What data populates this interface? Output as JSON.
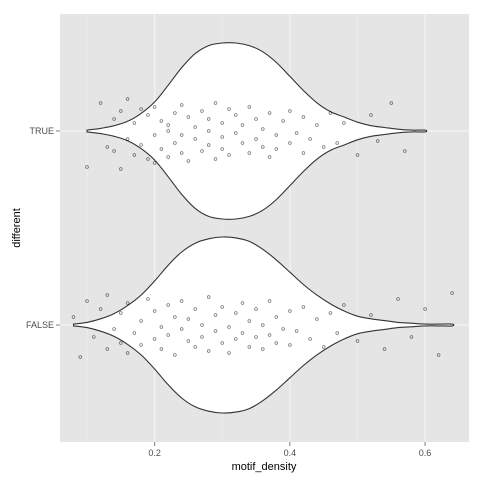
{
  "chart_data": {
    "type": "violin",
    "title": "",
    "xlabel": "motif_density",
    "ylabel": "different",
    "xlim": [
      0.06,
      0.665
    ],
    "x_ticks": [
      0.2,
      0.4,
      0.6
    ],
    "x_tick_labels": [
      "0.2",
      "0.4",
      "0.6"
    ],
    "categories": [
      "TRUE",
      "FALSE"
    ],
    "grid": true,
    "series": [
      {
        "category": "TRUE",
        "range": [
          0.1,
          0.6
        ],
        "density": [
          [
            0.1,
            0.01
          ],
          [
            0.12,
            0.03
          ],
          [
            0.14,
            0.06
          ],
          [
            0.16,
            0.11
          ],
          [
            0.18,
            0.2
          ],
          [
            0.2,
            0.33
          ],
          [
            0.22,
            0.52
          ],
          [
            0.24,
            0.72
          ],
          [
            0.26,
            0.88
          ],
          [
            0.28,
            0.97
          ],
          [
            0.3,
            1.0
          ],
          [
            0.32,
            1.0
          ],
          [
            0.34,
            0.97
          ],
          [
            0.36,
            0.9
          ],
          [
            0.38,
            0.78
          ],
          [
            0.4,
            0.62
          ],
          [
            0.42,
            0.46
          ],
          [
            0.44,
            0.32
          ],
          [
            0.46,
            0.22
          ],
          [
            0.48,
            0.16
          ],
          [
            0.5,
            0.1
          ],
          [
            0.52,
            0.06
          ],
          [
            0.54,
            0.04
          ],
          [
            0.56,
            0.02
          ],
          [
            0.58,
            0.01
          ],
          [
            0.6,
            0.01
          ]
        ],
        "points": [
          [
            0.1,
            0.9
          ],
          [
            0.12,
            -0.7
          ],
          [
            0.13,
            0.4
          ],
          [
            0.14,
            -0.3
          ],
          [
            0.14,
            0.5
          ],
          [
            0.15,
            0.95
          ],
          [
            0.15,
            -0.5
          ],
          [
            0.16,
            0.2
          ],
          [
            0.16,
            -0.8
          ],
          [
            0.17,
            0.6
          ],
          [
            0.17,
            -0.2
          ],
          [
            0.18,
            0.35
          ],
          [
            0.18,
            -0.55
          ],
          [
            0.19,
            0.7
          ],
          [
            0.19,
            -0.4
          ],
          [
            0.2,
            0.1
          ],
          [
            0.2,
            0.8
          ],
          [
            0.2,
            -0.6
          ],
          [
            0.21,
            0.45
          ],
          [
            0.21,
            -0.25
          ],
          [
            0.22,
            0.65
          ],
          [
            0.22,
            -0.15
          ],
          [
            0.22,
            0.0
          ],
          [
            0.23,
            -0.45
          ],
          [
            0.23,
            0.3
          ],
          [
            0.24,
            0.55
          ],
          [
            0.24,
            -0.65
          ],
          [
            0.24,
            0.1
          ],
          [
            0.25,
            -0.35
          ],
          [
            0.25,
            0.75
          ],
          [
            0.26,
            0.2
          ],
          [
            0.26,
            -0.1
          ],
          [
            0.27,
            0.5
          ],
          [
            0.27,
            -0.5
          ],
          [
            0.28,
            0.0
          ],
          [
            0.28,
            0.35
          ],
          [
            0.28,
            -0.3
          ],
          [
            0.29,
            0.7
          ],
          [
            0.29,
            -0.7
          ],
          [
            0.3,
            0.15
          ],
          [
            0.3,
            -0.2
          ],
          [
            0.3,
            0.45
          ],
          [
            0.31,
            -0.55
          ],
          [
            0.31,
            0.6
          ],
          [
            0.32,
            0.05
          ],
          [
            0.32,
            -0.4
          ],
          [
            0.33,
            0.3
          ],
          [
            0.33,
            -0.15
          ],
          [
            0.34,
            0.55
          ],
          [
            0.34,
            -0.6
          ],
          [
            0.35,
            0.2
          ],
          [
            0.35,
            -0.3
          ],
          [
            0.36,
            0.4
          ],
          [
            0.36,
            -0.05
          ],
          [
            0.37,
            0.65
          ],
          [
            0.37,
            -0.45
          ],
          [
            0.38,
            0.1
          ],
          [
            0.38,
            0.45
          ],
          [
            0.39,
            -0.25
          ],
          [
            0.4,
            0.3
          ],
          [
            0.4,
            -0.5
          ],
          [
            0.41,
            0.05
          ],
          [
            0.42,
            0.55
          ],
          [
            0.42,
            -0.35
          ],
          [
            0.43,
            0.2
          ],
          [
            0.44,
            -0.15
          ],
          [
            0.45,
            0.4
          ],
          [
            0.46,
            -0.45
          ],
          [
            0.47,
            0.3
          ],
          [
            0.48,
            -0.2
          ],
          [
            0.5,
            0.6
          ],
          [
            0.52,
            -0.4
          ],
          [
            0.53,
            0.25
          ],
          [
            0.55,
            -0.7
          ],
          [
            0.57,
            0.5
          ]
        ]
      },
      {
        "category": "FALSE",
        "range": [
          0.08,
          0.64
        ],
        "density": [
          [
            0.08,
            0.01
          ],
          [
            0.1,
            0.03
          ],
          [
            0.12,
            0.07
          ],
          [
            0.14,
            0.13
          ],
          [
            0.16,
            0.22
          ],
          [
            0.18,
            0.34
          ],
          [
            0.2,
            0.5
          ],
          [
            0.22,
            0.68
          ],
          [
            0.24,
            0.83
          ],
          [
            0.26,
            0.93
          ],
          [
            0.28,
            0.98
          ],
          [
            0.3,
            1.0
          ],
          [
            0.32,
            0.99
          ],
          [
            0.34,
            0.95
          ],
          [
            0.36,
            0.86
          ],
          [
            0.38,
            0.74
          ],
          [
            0.4,
            0.6
          ],
          [
            0.42,
            0.46
          ],
          [
            0.44,
            0.34
          ],
          [
            0.46,
            0.24
          ],
          [
            0.48,
            0.16
          ],
          [
            0.5,
            0.1
          ],
          [
            0.52,
            0.07
          ],
          [
            0.54,
            0.05
          ],
          [
            0.56,
            0.03
          ],
          [
            0.58,
            0.02
          ],
          [
            0.6,
            0.01
          ],
          [
            0.62,
            0.01
          ],
          [
            0.64,
            0.01
          ]
        ],
        "points": [
          [
            0.08,
            -0.2
          ],
          [
            0.09,
            0.8
          ],
          [
            0.1,
            -0.6
          ],
          [
            0.11,
            0.3
          ],
          [
            0.12,
            -0.4
          ],
          [
            0.13,
            0.6
          ],
          [
            0.13,
            -0.75
          ],
          [
            0.14,
            0.1
          ],
          [
            0.15,
            0.45
          ],
          [
            0.15,
            -0.3
          ],
          [
            0.16,
            0.7
          ],
          [
            0.16,
            -0.55
          ],
          [
            0.17,
            0.2
          ],
          [
            0.18,
            -0.1
          ],
          [
            0.18,
            0.5
          ],
          [
            0.19,
            -0.65
          ],
          [
            0.2,
            0.35
          ],
          [
            0.2,
            -0.35
          ],
          [
            0.21,
            0.6
          ],
          [
            0.21,
            0.05
          ],
          [
            0.22,
            -0.5
          ],
          [
            0.22,
            0.25
          ],
          [
            0.23,
            -0.2
          ],
          [
            0.23,
            0.75
          ],
          [
            0.24,
            0.1
          ],
          [
            0.24,
            -0.6
          ],
          [
            0.25,
            0.4
          ],
          [
            0.25,
            -0.15
          ],
          [
            0.26,
            0.55
          ],
          [
            0.26,
            -0.4
          ],
          [
            0.27,
            0.0
          ],
          [
            0.27,
            0.3
          ],
          [
            0.28,
            -0.7
          ],
          [
            0.28,
            0.65
          ],
          [
            0.29,
            -0.25
          ],
          [
            0.29,
            0.15
          ],
          [
            0.3,
            0.45
          ],
          [
            0.3,
            -0.45
          ],
          [
            0.31,
            0.05
          ],
          [
            0.31,
            0.7
          ],
          [
            0.32,
            -0.3
          ],
          [
            0.32,
            0.35
          ],
          [
            0.33,
            -0.55
          ],
          [
            0.33,
            0.2
          ],
          [
            0.34,
            0.55
          ],
          [
            0.34,
            -0.1
          ],
          [
            0.35,
            0.3
          ],
          [
            0.35,
            -0.4
          ],
          [
            0.36,
            0.6
          ],
          [
            0.36,
            0.0
          ],
          [
            0.37,
            -0.6
          ],
          [
            0.37,
            0.25
          ],
          [
            0.38,
            0.45
          ],
          [
            0.38,
            -0.2
          ],
          [
            0.39,
            0.1
          ],
          [
            0.4,
            -0.35
          ],
          [
            0.4,
            0.5
          ],
          [
            0.41,
            0.15
          ],
          [
            0.42,
            -0.45
          ],
          [
            0.43,
            0.35
          ],
          [
            0.44,
            -0.15
          ],
          [
            0.45,
            0.55
          ],
          [
            0.46,
            -0.3
          ],
          [
            0.47,
            0.2
          ],
          [
            0.48,
            -0.5
          ],
          [
            0.5,
            0.4
          ],
          [
            0.52,
            -0.25
          ],
          [
            0.54,
            0.6
          ],
          [
            0.56,
            -0.65
          ],
          [
            0.58,
            0.3
          ],
          [
            0.6,
            -0.4
          ],
          [
            0.62,
            0.75
          ],
          [
            0.64,
            -0.8
          ]
        ]
      }
    ]
  },
  "style": {
    "panel_bg": "#e5e5e5",
    "grid_color": "#f2f2f2",
    "violin_fill": "#ffffff",
    "violin_stroke": "#333333",
    "point_color": "#000000"
  }
}
